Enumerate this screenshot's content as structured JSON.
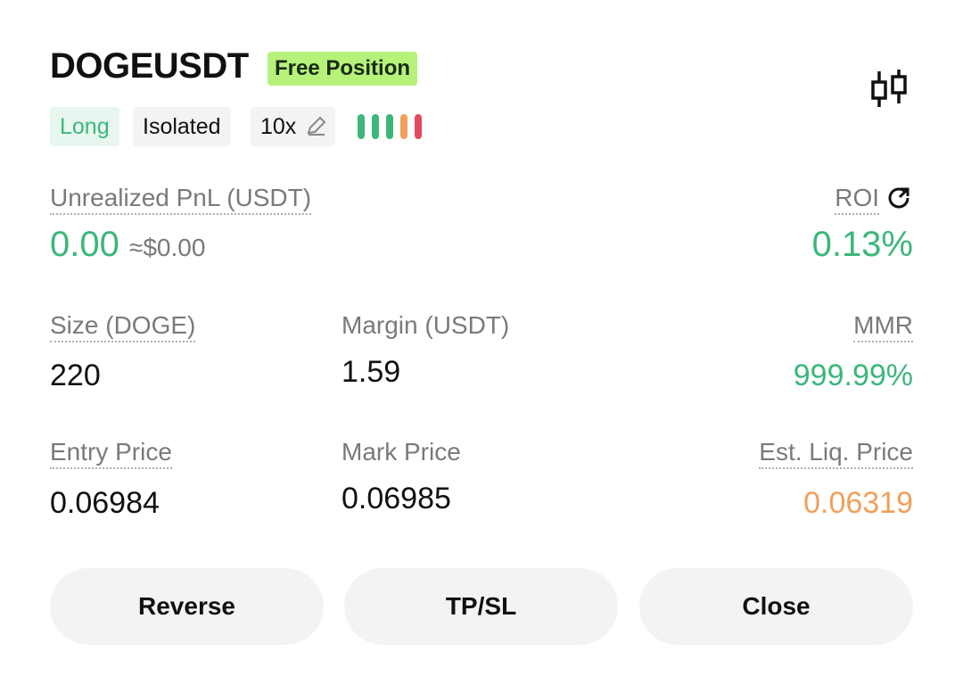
{
  "header": {
    "symbol": "DOGEUSDT",
    "badge": "Free Position"
  },
  "tags": [
    "Long",
    "Isolated",
    "10x"
  ],
  "pnl": {
    "label": "Unrealized PnL (USDT)",
    "value": "0.00",
    "approx": "≈$0.00"
  },
  "roi": {
    "label": "ROI",
    "value": "0.13%"
  },
  "fields": [
    {
      "label": "Size (DOGE)",
      "value": "220"
    },
    {
      "label": "Margin (USDT)",
      "value": "1.59"
    },
    {
      "label": "MMR",
      "value": "999.99%"
    },
    {
      "label": "Entry Price",
      "value": "0.06984"
    },
    {
      "label": "Mark Price",
      "value": "0.06985"
    },
    {
      "label": "Est. Liq. Price",
      "value": "0.06319"
    }
  ],
  "buttons": [
    "Reverse",
    "TP/SL",
    "Close"
  ]
}
